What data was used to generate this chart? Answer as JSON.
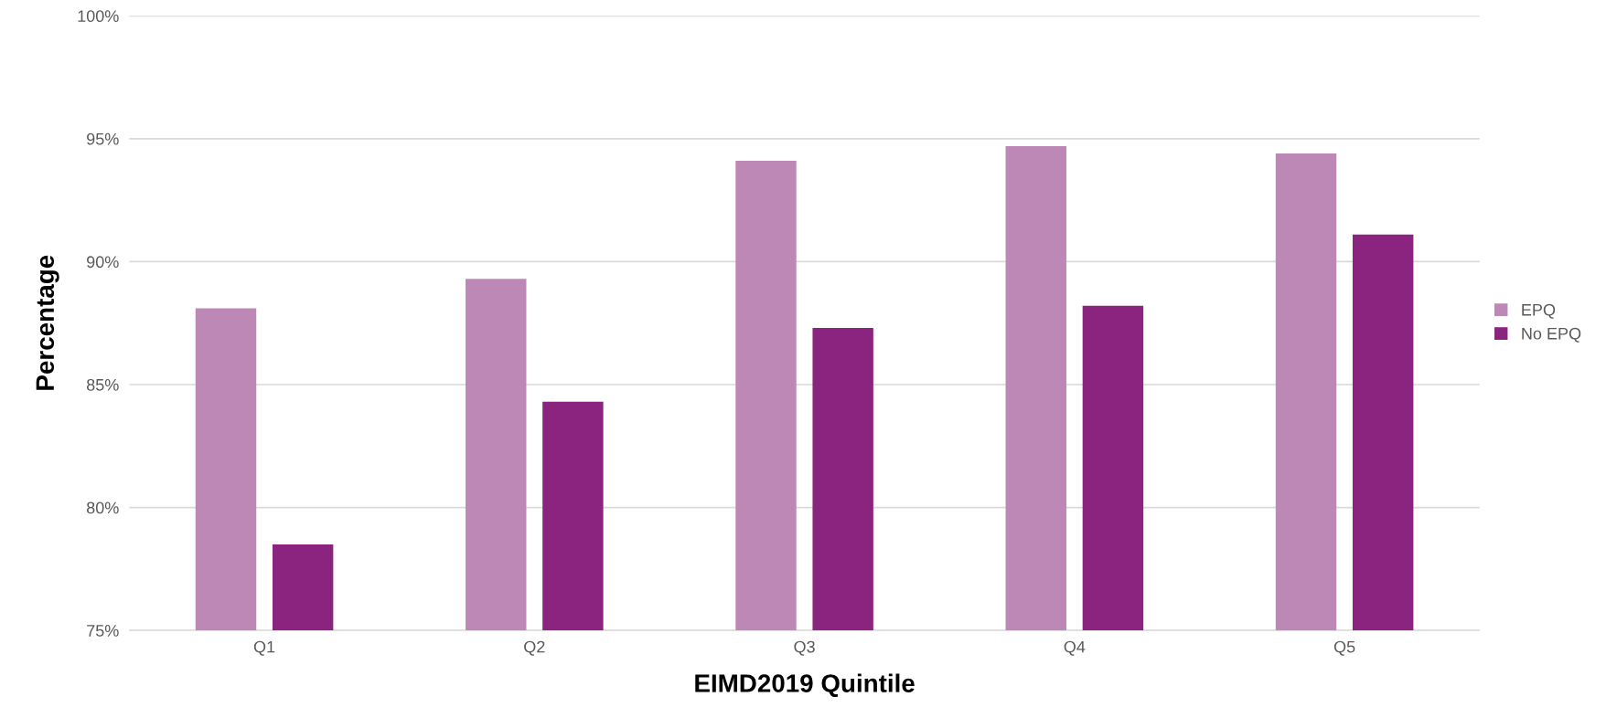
{
  "chart_data": {
    "type": "bar",
    "xlabel": "EIMD2019 Quintile",
    "ylabel": "Percentage",
    "categories": [
      "Q1",
      "Q2",
      "Q3",
      "Q4",
      "Q5"
    ],
    "series": [
      {
        "name": "EPQ",
        "color": "#bd88b5",
        "values": [
          88.1,
          89.3,
          94.1,
          94.7,
          94.4
        ]
      },
      {
        "name": "No EPQ",
        "color": "#8b247f",
        "values": [
          78.5,
          84.3,
          87.3,
          88.2,
          91.1
        ]
      }
    ],
    "ylim": [
      75,
      100
    ],
    "yticks": [
      {
        "value": 75,
        "label": "75%"
      },
      {
        "value": 80,
        "label": "80%"
      },
      {
        "value": 85,
        "label": "85%"
      },
      {
        "value": 90,
        "label": "90%"
      },
      {
        "value": 95,
        "label": "95%"
      },
      {
        "value": 100,
        "label": "100%"
      }
    ],
    "grid": "y",
    "legend": "right"
  }
}
